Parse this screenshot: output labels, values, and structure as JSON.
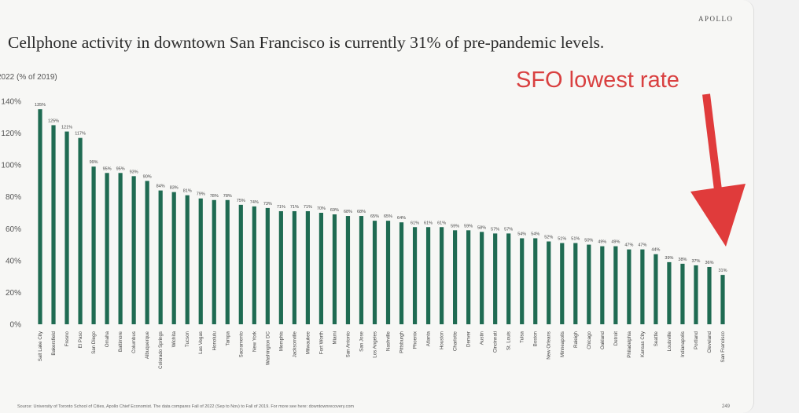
{
  "brand": "APOLLO",
  "title": "Cellphone activity in downtown San Francisco is currently 31% of pre-pandemic levels.",
  "annotation": "SFO lowest rate",
  "footer": {
    "source": "Source: University of Toronto School of Cities, Apollo Chief Economist. The data compares Fall of 2022 (Sep to Nov) to Fall of 2019. For more see here: downtownrecovery.com",
    "page": "249"
  },
  "colors": {
    "bar": "#1f6b52",
    "arrow": "#e03b3b",
    "annotation": "#d94040"
  },
  "chart_data": {
    "type": "bar",
    "ylabel": "2022 (% of 2019)",
    "ylim": [
      0,
      140
    ],
    "yticks": [
      "0%",
      "20%",
      "40%",
      "60%",
      "80%",
      "100%",
      "120%",
      "140%"
    ],
    "grid": false,
    "categories": [
      "Salt Lake City",
      "Bakersfield",
      "Fresno",
      "El Paso",
      "San Diego",
      "Omaha",
      "Baltimore",
      "Columbus",
      "Albuquerque",
      "Colorado Springs",
      "Wichita",
      "Tucson",
      "Las Vegas",
      "Honolulu",
      "Tampa",
      "Sacramento",
      "New York",
      "Washington DC",
      "Memphis",
      "Jacksonville",
      "Milwaukee",
      "Fort Worth",
      "Miami",
      "San Antonio",
      "San Jose",
      "Los Angeles",
      "Nashville",
      "Pittsburgh",
      "Phoenix",
      "Atlanta",
      "Houston",
      "Charlotte",
      "Denver",
      "Austin",
      "Cincinnati",
      "St. Louis",
      "Tulsa",
      "Boston",
      "New Orleans",
      "Minneapolis",
      "Raleigh",
      "Chicago",
      "Oakland",
      "Detroit",
      "Philadelphia",
      "Kansas City",
      "Seattle",
      "Louisville",
      "Indianapolis",
      "Portland",
      "Cleveland",
      "San Francisco"
    ],
    "values": [
      135,
      125,
      121,
      117,
      99,
      95,
      95,
      93,
      90,
      84,
      83,
      81,
      79,
      78,
      78,
      75,
      74,
      73,
      71,
      71,
      71,
      70,
      69,
      68,
      68,
      65,
      65,
      64,
      61,
      61,
      61,
      59,
      59,
      58,
      57,
      57,
      54,
      54,
      52,
      51,
      51,
      50,
      49,
      49,
      47,
      47,
      44,
      39,
      38,
      37,
      36,
      31
    ],
    "value_labels": [
      "135%",
      "125%",
      "121%",
      "117%",
      "99%",
      "95%",
      "95%",
      "93%",
      "90%",
      "84%",
      "83%",
      "81%",
      "79%",
      "78%",
      "78%",
      "75%",
      "74%",
      "73%",
      "71%",
      "71%",
      "71%",
      "70%",
      "69%",
      "68%",
      "68%",
      "65%",
      "65%",
      "64%",
      "61%",
      "61%",
      "61%",
      "59%",
      "59%",
      "58%",
      "57%",
      "57%",
      "54%",
      "54%",
      "52%",
      "51%",
      "51%",
      "50%",
      "49%",
      "49%",
      "47%",
      "47%",
      "44%",
      "39%",
      "38%",
      "37%",
      "36%",
      "31%"
    ]
  }
}
